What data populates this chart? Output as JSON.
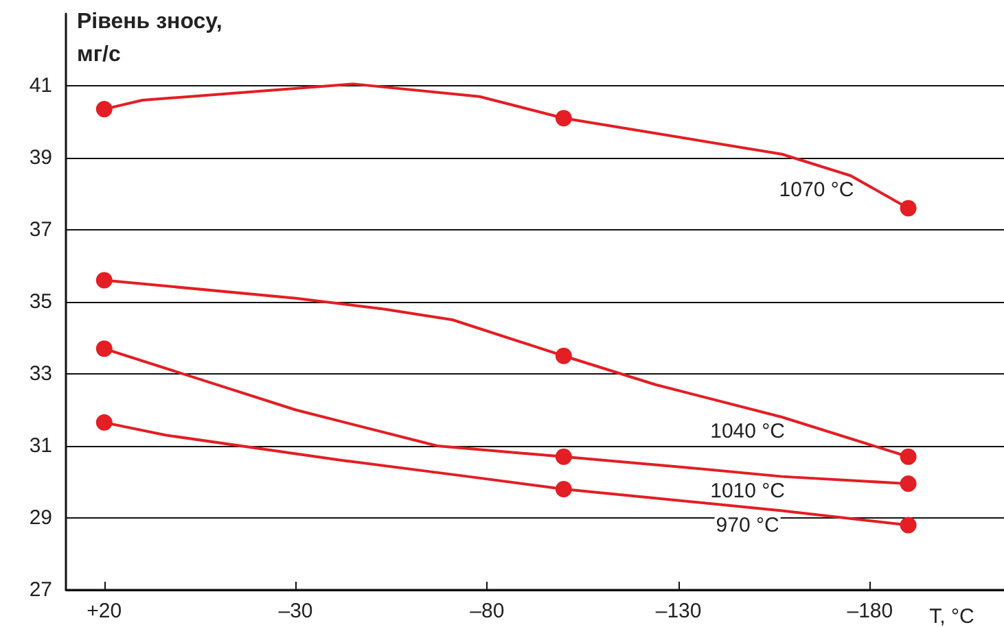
{
  "chart_data": {
    "type": "line",
    "xlabel": "T, °C",
    "ylabel": "Рівень зносу,\nмг/с",
    "xlim": [
      30,
      -215
    ],
    "xticks": [
      {
        "value": 20,
        "label": "+20"
      },
      {
        "value": -30,
        "label": "–30"
      },
      {
        "value": -80,
        "label": "–80"
      },
      {
        "value": -130,
        "label": "–130"
      },
      {
        "value": -180,
        "label": "–180"
      }
    ],
    "ylim": [
      27,
      43
    ],
    "yticks": [
      27,
      29,
      31,
      33,
      35,
      37,
      39,
      41
    ],
    "grid": "y",
    "marker": "none",
    "line_style": "solid",
    "legend": false,
    "series": [
      {
        "name": "1070 °C",
        "color": "#e31e24",
        "x": [
          20,
          10,
          -45,
          -78,
          -100,
          -157,
          -175,
          -190
        ],
        "values": [
          40.35,
          40.6,
          41.05,
          40.7,
          40.1,
          39.1,
          38.5,
          37.6
        ]
      },
      {
        "name": "1040 °C",
        "color": "#e31e24",
        "x": [
          20,
          -30,
          -53,
          -71,
          -100,
          -124,
          -157,
          -190
        ],
        "values": [
          35.6,
          35.1,
          34.8,
          34.5,
          33.5,
          32.7,
          31.8,
          30.7
        ]
      },
      {
        "name": "1010 °C",
        "color": "#e31e24",
        "x": [
          20,
          -30,
          -67,
          -100,
          -132,
          -157,
          -190
        ],
        "values": [
          33.7,
          32.0,
          31.0,
          30.7,
          30.4,
          30.15,
          29.95
        ]
      },
      {
        "name": "970 °C",
        "color": "#e31e24",
        "x": [
          20,
          4,
          -42,
          -75,
          -100,
          -157,
          -190
        ],
        "values": [
          31.65,
          31.3,
          30.6,
          30.15,
          29.8,
          29.2,
          28.8
        ]
      },
      {
        "type": "scatter",
        "marker": "circle",
        "color": "#e31e24",
        "x": [
          20,
          -100,
          -190
        ],
        "values": [
          40.35,
          40.1,
          37.6
        ]
      },
      {
        "type": "scatter",
        "marker": "circle",
        "color": "#e31e24",
        "x": [
          20,
          -100,
          -190
        ],
        "values": [
          35.6,
          33.5,
          30.7
        ]
      },
      {
        "type": "scatter",
        "marker": "circle",
        "color": "#e31e24",
        "x": [
          20,
          -100,
          -190
        ],
        "values": [
          33.7,
          30.7,
          29.95
        ]
      },
      {
        "type": "scatter",
        "marker": "circle",
        "color": "#e31e24",
        "x": [
          20,
          -100,
          -190
        ],
        "values": [
          31.65,
          29.8,
          28.8
        ]
      }
    ]
  }
}
